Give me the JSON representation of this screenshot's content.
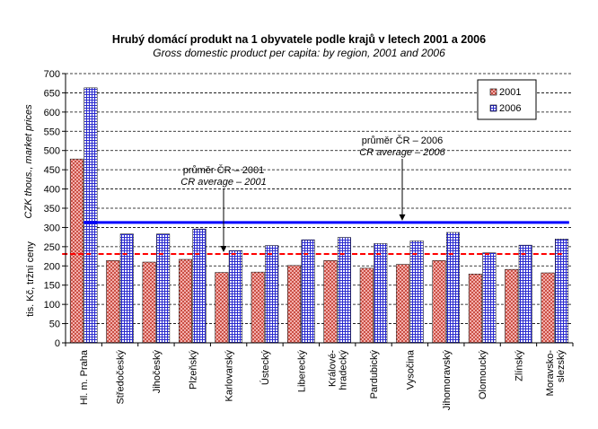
{
  "chart_data": {
    "type": "bar",
    "title": "Hrubý domácí produkt na 1 obyvatele podle krajů v letech 2001 a 2006",
    "subtitle": "Gross domestic product per capita: by region, 2001 and 2006",
    "ylabel_cz": "tis. Kč, tržní ceny",
    "ylabel_en": "CZK thous., market prices",
    "ylim": [
      0,
      700
    ],
    "yticks": [
      0,
      50,
      100,
      150,
      200,
      250,
      300,
      350,
      400,
      450,
      500,
      550,
      600,
      650,
      700
    ],
    "grid": true,
    "legend_position": "top-right",
    "categories": [
      [
        "Hl. m. Praha"
      ],
      [
        "Středočeský"
      ],
      [
        "Jihočeský"
      ],
      [
        "Plzeňský"
      ],
      [
        "Karlovarský"
      ],
      [
        "Ústecký"
      ],
      [
        "Liberecký"
      ],
      [
        "Králové-",
        "hradecký"
      ],
      [
        "Pardubický"
      ],
      [
        "Vysočina"
      ],
      [
        "Jihomoravský"
      ],
      [
        "Olomoucký"
      ],
      [
        "Zlínský"
      ],
      [
        "Moravsko-",
        "slezský"
      ]
    ],
    "series": [
      {
        "name": "2001",
        "color": "#c0504d",
        "values": [
          478,
          214,
          210,
          217,
          183,
          184,
          201,
          214,
          194,
          204,
          214,
          179,
          191,
          182
        ]
      },
      {
        "name": "2006",
        "color": "#3333cc",
        "values": [
          663,
          283,
          283,
          296,
          240,
          253,
          268,
          274,
          258,
          265,
          287,
          234,
          254,
          270
        ]
      }
    ],
    "reference_lines": [
      {
        "series": "2001",
        "value": 231,
        "color": "#ff0000",
        "dashed": true,
        "label_cz": "průměr ČR – 2001",
        "label_en": "CR average – 2001"
      },
      {
        "series": "2006",
        "value": 313,
        "color": "#0000ff",
        "dashed": false,
        "label_cz": "průměr ČR – 2006",
        "label_en": "CR average – 2006"
      }
    ]
  }
}
